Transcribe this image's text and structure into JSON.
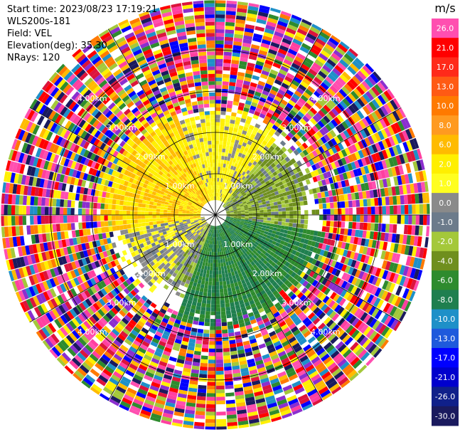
{
  "header": {
    "start_time": "Start time: 2023/08/23 17:19:21",
    "instrument": "WLS200s-181",
    "field": "Field: VEL",
    "elevation": "Elevation(deg): 35.30",
    "nrays": "NRays: 120"
  },
  "colorbar": {
    "unit": "m/s",
    "tick_labels": [
      "26.0",
      "21.0",
      "17.0",
      "13.0",
      "10.0",
      "8.0",
      "6.0",
      "2.0",
      "1.0",
      "0.0",
      "-1.0",
      "-2.0",
      "-4.0",
      "-6.0",
      "-8.0",
      "-10.0",
      "-13.0",
      "-17.0",
      "-21.0",
      "-26.0",
      "-30.0"
    ],
    "colors": [
      "#ff4fb0",
      "#ff0000",
      "#ff2a1a",
      "#ff5a14",
      "#ff7a00",
      "#ff9a20",
      "#ffbb00",
      "#ffef00",
      "#fffe20",
      "#8a8a8a",
      "#6c7b8b",
      "#a4c83a",
      "#6f8f1e",
      "#2e8b2e",
      "#1f7f4f",
      "#1e90c8",
      "#1e5adc",
      "#0000ff",
      "#0000cd",
      "#10208a",
      "#1a1a5e"
    ]
  },
  "chart_data": {
    "type": "heatmap",
    "projection": "polar PPI",
    "field": "VEL",
    "unit": "m/s",
    "nrays": 120,
    "range_rings_km": [
      1.0,
      2.0,
      3.0,
      4.0
    ],
    "range_ring_labels": [
      "1.00km",
      "2.00km",
      "3.00km",
      "4.00km"
    ],
    "radial_spokes_deg": [
      0,
      30,
      60,
      90,
      120,
      150,
      180,
      210,
      240,
      270,
      300,
      330
    ],
    "max_range_km": 5.2,
    "valid_data_range_km": 2.7,
    "velocity_regions": [
      {
        "azimuth_deg": [
          260,
          340
        ],
        "range_km": [
          0.3,
          2.7
        ],
        "velocity_ms": 6.0
      },
      {
        "azimuth_deg": [
          340,
          40
        ],
        "range_km": [
          0.3,
          2.4
        ],
        "velocity_ms": 2.0
      },
      {
        "azimuth_deg": [
          220,
          260
        ],
        "range_km": [
          0.2,
          2.3
        ],
        "velocity_ms": 1.0
      },
      {
        "azimuth_deg": [
          40,
          100
        ],
        "range_km": [
          0.2,
          2.3
        ],
        "velocity_ms": -2.0
      },
      {
        "azimuth_deg": [
          100,
          200
        ],
        "range_km": [
          0.2,
          2.6
        ],
        "velocity_ms": -6.0
      },
      {
        "azimuth_deg": [
          200,
          225
        ],
        "range_km": [
          0.2,
          2.0
        ],
        "velocity_ms": -1.0
      }
    ],
    "noise_range_km": [
      2.7,
      5.2
    ]
  }
}
